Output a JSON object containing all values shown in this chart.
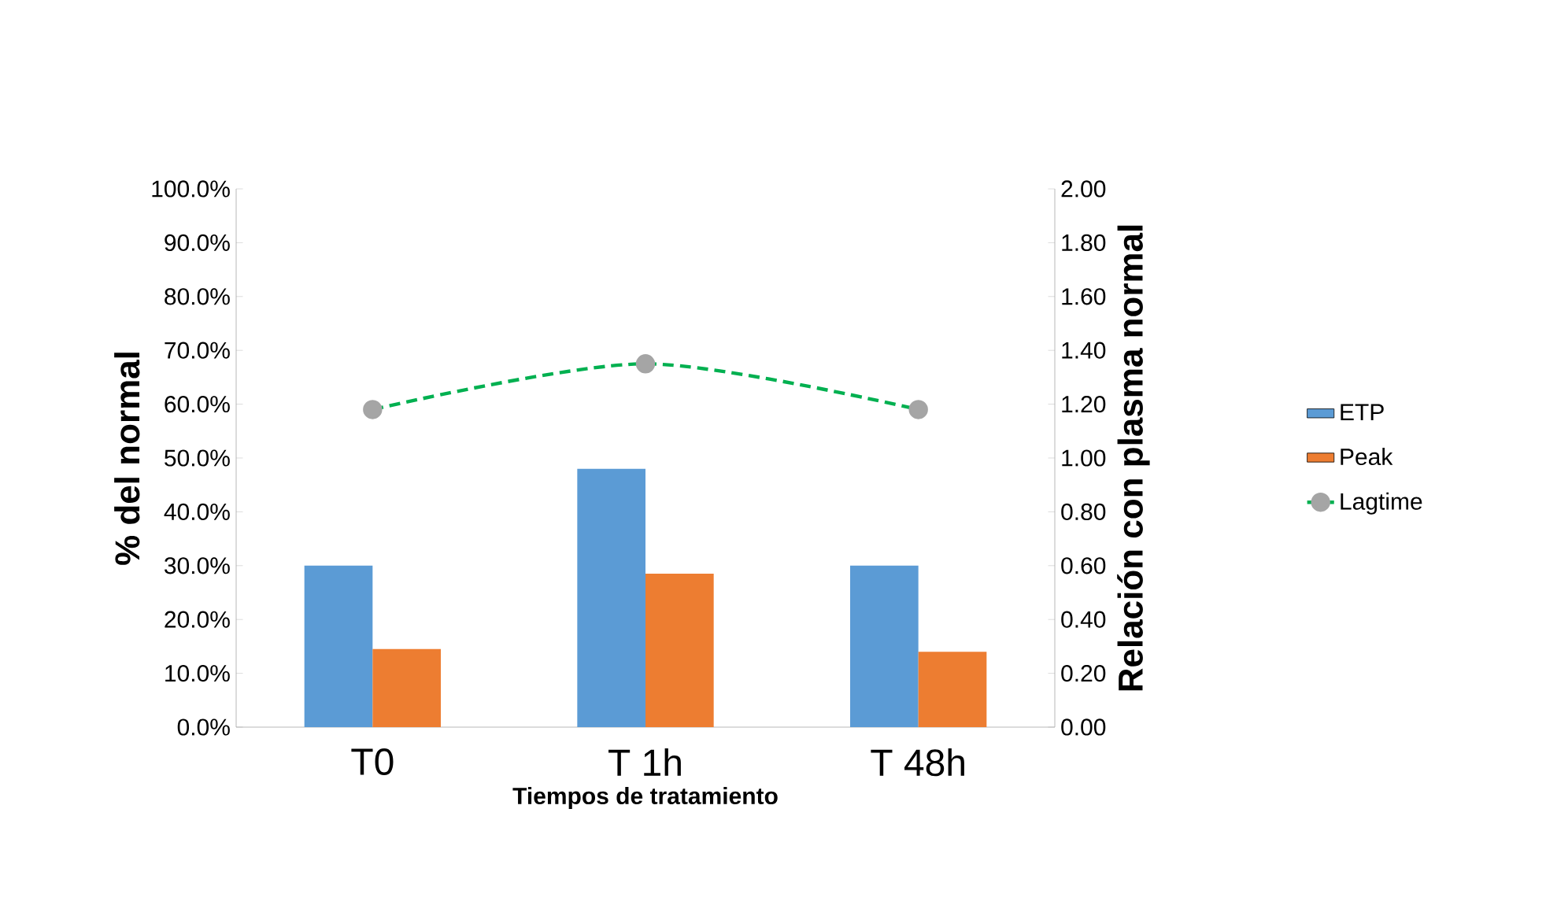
{
  "chart_data": {
    "type": "bar",
    "categories": [
      "T0",
      "T 1h",
      "T 48h"
    ],
    "xlabel": "Tiempos de tratamiento",
    "ylabel": "% del normal",
    "y2label": "Relación con plasma normal",
    "series": [
      {
        "name": "ETP",
        "color": "#5b9bd5",
        "values": [
          30,
          48,
          30
        ]
      },
      {
        "name": "Peak",
        "color": "#ed7d31",
        "values": [
          14.5,
          28.5,
          14
        ]
      },
      {
        "name": "Lagtime",
        "type": "line",
        "axis": "y2",
        "color": "#00b050",
        "colors": [
          "#a5a5a5",
          "#a5a5a5",
          "#a5a5a5"
        ],
        "marker": "circle",
        "line_style": "dashed",
        "values": [
          1.18,
          1.35,
          1.18
        ]
      }
    ],
    "ylim": [
      0,
      100
    ],
    "yticks": [
      {
        "value": 0,
        "label": "0.0%"
      },
      {
        "value": 10,
        "label": "10.0%"
      },
      {
        "value": 20,
        "label": "20.0%"
      },
      {
        "value": 30,
        "label": "30.0%"
      },
      {
        "value": 40,
        "label": "40.0%"
      },
      {
        "value": 50,
        "label": "50.0%"
      },
      {
        "value": 60,
        "label": "60.0%"
      },
      {
        "value": 70,
        "label": "70.0%"
      },
      {
        "value": 80,
        "label": "80.0%"
      },
      {
        "value": 90,
        "label": "90.0%"
      },
      {
        "value": 100,
        "label": "100.0%"
      }
    ],
    "y2lim": [
      0,
      2
    ],
    "y2ticks": [
      {
        "value": 0,
        "label": "0.00"
      },
      {
        "value": 0.2,
        "label": "0.20"
      },
      {
        "value": 0.4,
        "label": "0.40"
      },
      {
        "value": 0.6,
        "label": "0.60"
      },
      {
        "value": 0.8,
        "label": "0.80"
      },
      {
        "value": 1,
        "label": "1.00"
      },
      {
        "value": 1.2,
        "label": "1.20"
      },
      {
        "value": 1.4,
        "label": "1.40"
      },
      {
        "value": 1.6,
        "label": "1.60"
      },
      {
        "value": 1.8,
        "label": "1.80"
      },
      {
        "value": 2,
        "label": "2.00"
      }
    ],
    "grid": false,
    "legend": "right"
  }
}
